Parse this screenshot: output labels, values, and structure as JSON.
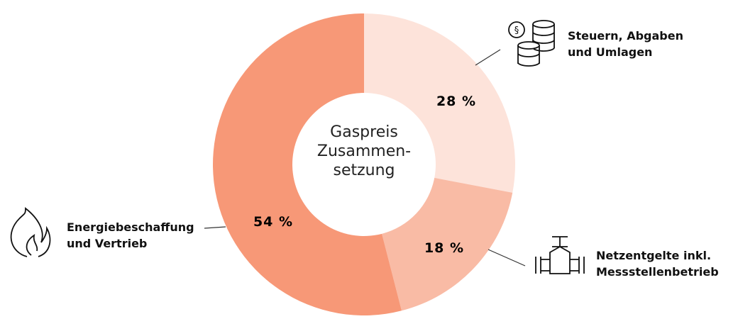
{
  "chart_data": {
    "type": "donut",
    "center_label": [
      "Gaspreis",
      "Zusammen-",
      "setzung"
    ],
    "categories": [
      "Steuern, Abgaben\nund Umlagen",
      "Netzentgelte inkl.\nMessstellenbetrieb",
      "Energiebeschaffung\nund Vertrieb"
    ],
    "values": [
      28,
      18,
      54
    ],
    "value_labels": [
      "28 %",
      "18 %",
      "54 %"
    ],
    "colors": [
      "#fde3da",
      "#f9bba5",
      "#f79877"
    ]
  }
}
